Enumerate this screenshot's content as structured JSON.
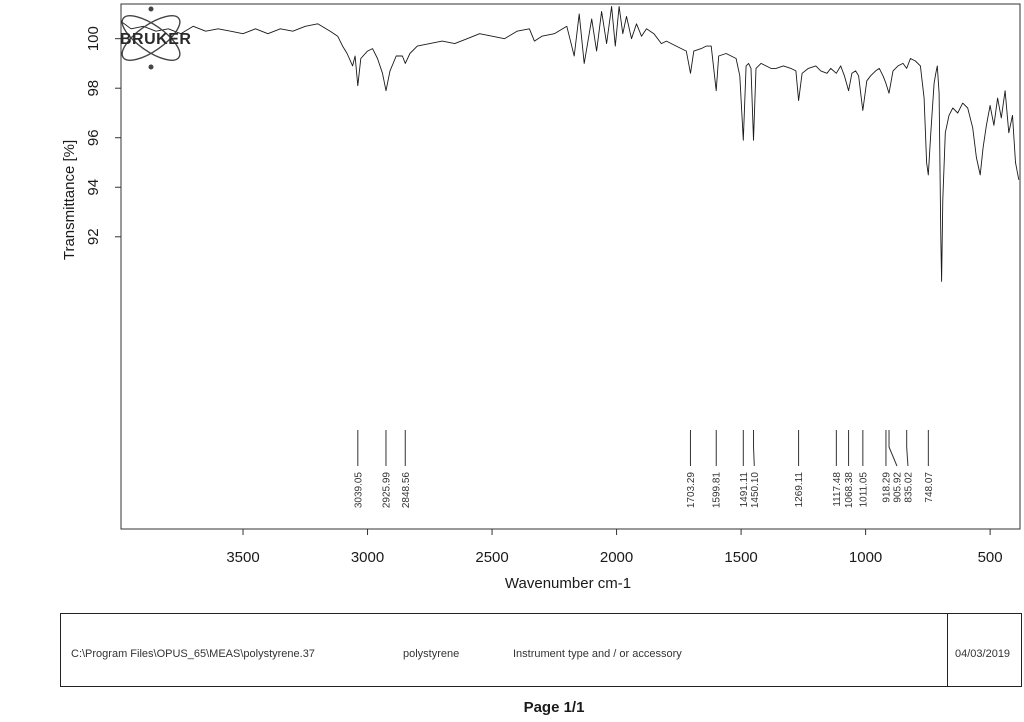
{
  "chart_data": {
    "type": "line",
    "xlabel": "Wavenumber cm-1",
    "ylabel": "Transmittance [%]",
    "xlim": [
      3990,
      380
    ],
    "ylim": [
      80.2,
      101.4
    ],
    "x_ticks": [
      3500,
      3000,
      2500,
      2000,
      1500,
      1000,
      500
    ],
    "y_ticks": [
      92,
      94,
      96,
      98,
      100
    ],
    "grid": false,
    "x_reversed": true,
    "series": [
      {
        "values": [
          [
            3990,
            100.7
          ],
          [
            3950,
            100.4
          ],
          [
            3900,
            100.5
          ],
          [
            3850,
            100.3
          ],
          [
            3800,
            100.4
          ],
          [
            3750,
            100.2
          ],
          [
            3700,
            100.5
          ],
          [
            3650,
            100.3
          ],
          [
            3600,
            100.4
          ],
          [
            3550,
            100.3
          ],
          [
            3500,
            100.2
          ],
          [
            3450,
            100.4
          ],
          [
            3400,
            100.2
          ],
          [
            3350,
            100.4
          ],
          [
            3300,
            100.3
          ],
          [
            3250,
            100.5
          ],
          [
            3200,
            100.6
          ],
          [
            3150,
            100.3
          ],
          [
            3120,
            100.1
          ],
          [
            3100,
            99.7
          ],
          [
            3082,
            99.4
          ],
          [
            3060,
            98.9
          ],
          [
            3050,
            99.3
          ],
          [
            3039,
            98.1
          ],
          [
            3027,
            99.2
          ],
          [
            3000,
            99.5
          ],
          [
            2980,
            99.6
          ],
          [
            2960,
            99.2
          ],
          [
            2940,
            98.6
          ],
          [
            2925.99,
            97.9
          ],
          [
            2910,
            98.7
          ],
          [
            2885,
            99.3
          ],
          [
            2860,
            99.3
          ],
          [
            2848.56,
            99.0
          ],
          [
            2830,
            99.4
          ],
          [
            2800,
            99.7
          ],
          [
            2750,
            99.8
          ],
          [
            2700,
            99.9
          ],
          [
            2650,
            99.8
          ],
          [
            2600,
            100.0
          ],
          [
            2550,
            100.2
          ],
          [
            2500,
            100.1
          ],
          [
            2450,
            100.0
          ],
          [
            2400,
            100.3
          ],
          [
            2350,
            100.4
          ],
          [
            2330,
            99.9
          ],
          [
            2300,
            100.1
          ],
          [
            2250,
            100.2
          ],
          [
            2200,
            100.5
          ],
          [
            2170,
            99.3
          ],
          [
            2150,
            101.0
          ],
          [
            2130,
            99.0
          ],
          [
            2100,
            100.8
          ],
          [
            2080,
            99.5
          ],
          [
            2060,
            101.1
          ],
          [
            2040,
            99.8
          ],
          [
            2020,
            101.3
          ],
          [
            2005,
            99.7
          ],
          [
            1990,
            101.3
          ],
          [
            1975,
            100.2
          ],
          [
            1960,
            100.9
          ],
          [
            1940,
            100.0
          ],
          [
            1920,
            100.6
          ],
          [
            1900,
            100.1
          ],
          [
            1880,
            100.4
          ],
          [
            1850,
            100.2
          ],
          [
            1820,
            99.8
          ],
          [
            1800,
            99.9
          ],
          [
            1760,
            99.7
          ],
          [
            1740,
            99.6
          ],
          [
            1720,
            99.5
          ],
          [
            1703.29,
            98.6
          ],
          [
            1690,
            99.5
          ],
          [
            1660,
            99.6
          ],
          [
            1640,
            99.7
          ],
          [
            1620,
            99.7
          ],
          [
            1599.81,
            97.9
          ],
          [
            1590,
            99.3
          ],
          [
            1560,
            99.4
          ],
          [
            1540,
            99.3
          ],
          [
            1520,
            99.2
          ],
          [
            1505,
            98.5
          ],
          [
            1491.11,
            95.9
          ],
          [
            1480,
            98.9
          ],
          [
            1470,
            99.0
          ],
          [
            1460,
            98.8
          ],
          [
            1450.1,
            95.9
          ],
          [
            1440,
            98.8
          ],
          [
            1420,
            99.0
          ],
          [
            1400,
            98.9
          ],
          [
            1380,
            98.8
          ],
          [
            1360,
            98.8
          ],
          [
            1330,
            98.9
          ],
          [
            1300,
            98.8
          ],
          [
            1280,
            98.7
          ],
          [
            1269.11,
            97.5
          ],
          [
            1255,
            98.6
          ],
          [
            1230,
            98.8
          ],
          [
            1200,
            98.9
          ],
          [
            1180,
            98.7
          ],
          [
            1155,
            98.6
          ],
          [
            1140,
            98.8
          ],
          [
            1117.48,
            98.6
          ],
          [
            1100,
            98.9
          ],
          [
            1085,
            98.5
          ],
          [
            1068.38,
            97.9
          ],
          [
            1055,
            98.6
          ],
          [
            1040,
            98.7
          ],
          [
            1028,
            98.5
          ],
          [
            1011.05,
            97.1
          ],
          [
            995,
            98.3
          ],
          [
            980,
            98.5
          ],
          [
            960,
            98.7
          ],
          [
            945,
            98.8
          ],
          [
            930,
            98.5
          ],
          [
            918.29,
            98.2
          ],
          [
            905.92,
            97.8
          ],
          [
            890,
            98.7
          ],
          [
            870,
            98.9
          ],
          [
            850,
            99.0
          ],
          [
            835.02,
            98.8
          ],
          [
            820,
            99.2
          ],
          [
            800,
            99.1
          ],
          [
            780,
            98.9
          ],
          [
            765,
            97.6
          ],
          [
            755,
            95.0
          ],
          [
            748.07,
            94.5
          ],
          [
            738,
            96.2
          ],
          [
            725,
            98.2
          ],
          [
            718,
            98.6
          ],
          [
            712,
            98.9
          ],
          [
            705,
            97.8
          ],
          [
            698,
            92.0
          ],
          [
            695,
            90.2
          ],
          [
            690,
            93.5
          ],
          [
            680,
            96.2
          ],
          [
            665,
            96.9
          ],
          [
            650,
            97.2
          ],
          [
            630,
            97.0
          ],
          [
            610,
            97.4
          ],
          [
            590,
            97.2
          ],
          [
            570,
            96.4
          ],
          [
            555,
            95.2
          ],
          [
            540,
            94.5
          ],
          [
            528,
            95.6
          ],
          [
            515,
            96.5
          ],
          [
            500,
            97.3
          ],
          [
            485,
            96.5
          ],
          [
            470,
            97.6
          ],
          [
            455,
            96.8
          ],
          [
            440,
            97.9
          ],
          [
            425,
            96.2
          ],
          [
            410,
            96.9
          ],
          [
            398,
            95.0
          ],
          [
            385,
            94.3
          ]
        ]
      }
    ],
    "peak_labels": [
      "3039.05",
      "2925.99",
      "2848.56",
      "1703.29",
      "1599.81",
      "1491.11",
      "1450.10",
      "1269.11",
      "1117.48",
      "1068.38",
      "1011.05",
      "918.29",
      "905.92",
      "835.02",
      "748.07"
    ],
    "peak_positions": [
      3039.05,
      2925.99,
      2848.56,
      1703.29,
      1599.81,
      1491.11,
      1450.1,
      1269.11,
      1117.48,
      1068.38,
      1011.05,
      918.29,
      905.92,
      835.02,
      748.07
    ],
    "colors": {
      "line": "#1a1a1a",
      "frame": "#333333"
    }
  },
  "logo": {
    "text": "BRUKER",
    "icon": "atom-icon"
  },
  "footer": {
    "file_path": "C:\\Program Files\\OPUS_65\\MEAS\\polystyrene.37",
    "sample_name": "polystyrene",
    "instrument": "Instrument type and / or accessory",
    "date": "04/03/2019"
  },
  "page": {
    "number_text": "Page 1/1"
  }
}
